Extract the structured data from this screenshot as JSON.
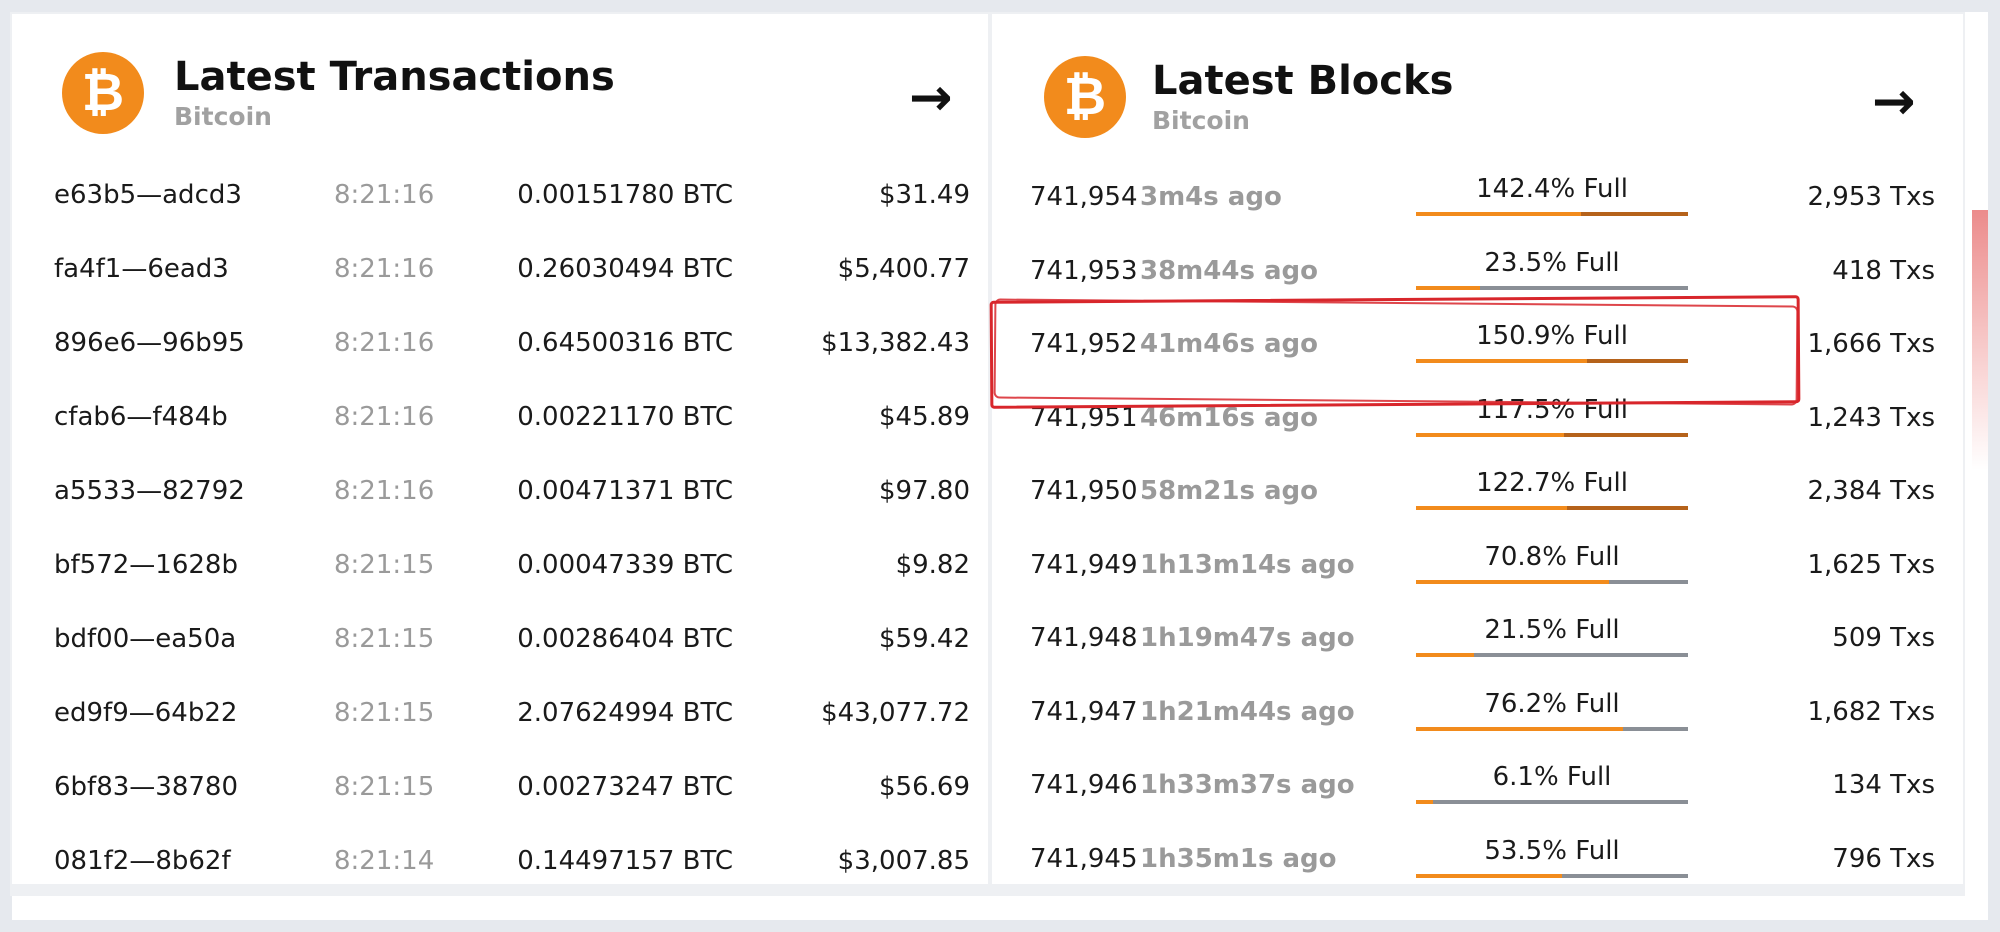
{
  "transactions": {
    "title": "Latest Transactions",
    "subtitle": "Bitcoin",
    "arrow": "→",
    "rows": [
      {
        "hash": "e63b5—adcd3",
        "time": "8:21:16",
        "amount": "0.00151780 BTC",
        "usd": "$31.49"
      },
      {
        "hash": "fa4f1—6ead3",
        "time": "8:21:16",
        "amount": "0.26030494 BTC",
        "usd": "$5,400.77"
      },
      {
        "hash": "896e6—96b95",
        "time": "8:21:16",
        "amount": "0.64500316 BTC",
        "usd": "$13,382.43"
      },
      {
        "hash": "cfab6—f484b",
        "time": "8:21:16",
        "amount": "0.00221170 BTC",
        "usd": "$45.89"
      },
      {
        "hash": "a5533—82792",
        "time": "8:21:16",
        "amount": "0.00471371 BTC",
        "usd": "$97.80"
      },
      {
        "hash": "bf572—1628b",
        "time": "8:21:15",
        "amount": "0.00047339 BTC",
        "usd": "$9.82"
      },
      {
        "hash": "bdf00—ea50a",
        "time": "8:21:15",
        "amount": "0.00286404 BTC",
        "usd": "$59.42"
      },
      {
        "hash": "ed9f9—64b22",
        "time": "8:21:15",
        "amount": "2.07624994 BTC",
        "usd": "$43,077.72"
      },
      {
        "hash": "6bf83—38780",
        "time": "8:21:15",
        "amount": "0.00273247 BTC",
        "usd": "$56.69"
      },
      {
        "hash": "081f2—8b62f",
        "time": "8:21:14",
        "amount": "0.14497157 BTC",
        "usd": "$3,007.85"
      }
    ]
  },
  "blocks": {
    "title": "Latest Blocks",
    "subtitle": "Bitcoin",
    "arrow": "→",
    "rows": [
      {
        "height": "741,954",
        "age": "3m4s ago",
        "full": "142.4% Full",
        "pct": 142.4,
        "txs": "2,953 Txs"
      },
      {
        "height": "741,953",
        "age": "38m44s ago",
        "full": "23.5% Full",
        "pct": 23.5,
        "txs": "418 Txs"
      },
      {
        "height": "741,952",
        "age": "41m46s ago",
        "full": "150.9% Full",
        "pct": 150.9,
        "txs": "1,666 Txs"
      },
      {
        "height": "741,951",
        "age": "46m16s ago",
        "full": "117.5% Full",
        "pct": 117.5,
        "txs": "1,243 Txs"
      },
      {
        "height": "741,950",
        "age": "58m21s ago",
        "full": "122.7% Full",
        "pct": 122.7,
        "txs": "2,384 Txs"
      },
      {
        "height": "741,949",
        "age": "1h13m14s ago",
        "full": "70.8% Full",
        "pct": 70.8,
        "txs": "1,625 Txs"
      },
      {
        "height": "741,948",
        "age": "1h19m47s ago",
        "full": "21.5% Full",
        "pct": 21.5,
        "txs": "509 Txs"
      },
      {
        "height": "741,947",
        "age": "1h21m44s ago",
        "full": "76.2% Full",
        "pct": 76.2,
        "txs": "1,682 Txs"
      },
      {
        "height": "741,946",
        "age": "1h33m37s ago",
        "full": "6.1% Full",
        "pct": 6.1,
        "txs": "134 Txs"
      },
      {
        "height": "741,945",
        "age": "1h35m1s ago",
        "full": "53.5% Full",
        "pct": 53.5,
        "txs": "796 Txs"
      }
    ]
  },
  "colors": {
    "accent": "#f28b1c",
    "bar_track": "#8a8f96",
    "bar_overflow": "#b5621a",
    "highlight": "#d8262b"
  },
  "icons": {
    "logo": "bitcoin-logo-icon",
    "arrow": "arrow-right-icon"
  }
}
